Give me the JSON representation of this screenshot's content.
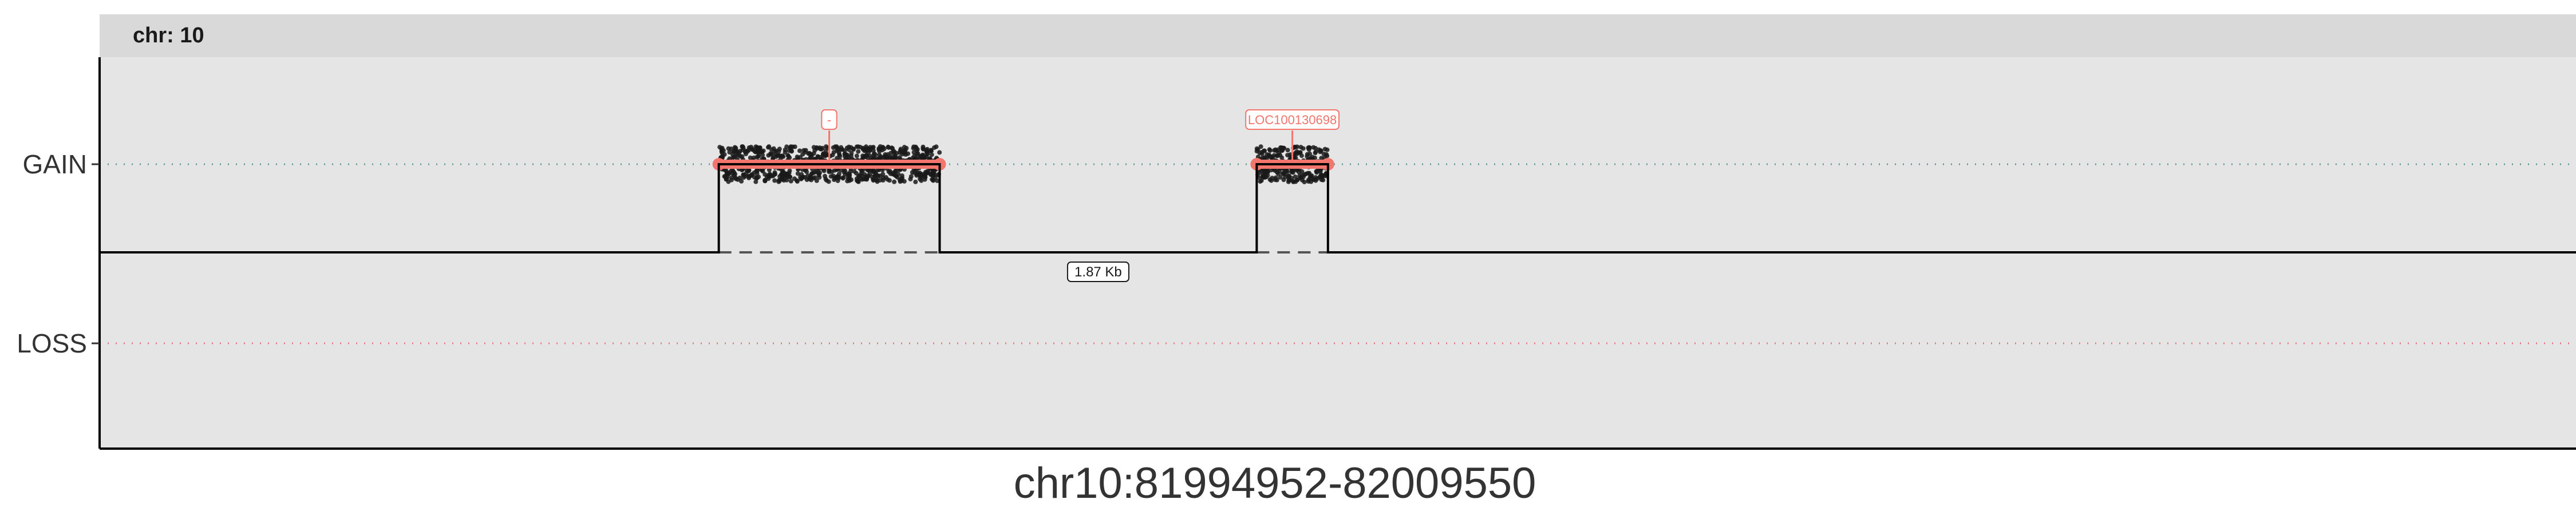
{
  "chart_data": {
    "type": "scatter",
    "facet_label": "chr: 10",
    "xlabel": "chr10:81994952-82009550",
    "y_ticks": [
      "GAIN",
      "LOSS"
    ],
    "xlim": [
      81994952,
      82009550
    ],
    "grid": false,
    "colors": {
      "panel": "#e5e5e5",
      "strip": "#d9d9d9",
      "gain_line": "#5e9a8d",
      "loss_line": "#e8787a",
      "segment": "#f2766d",
      "points": "#1a1a1a",
      "step_line": "#000000"
    },
    "segments": [
      {
        "start": 81998602,
        "end": 81999904,
        "state": "GAIN",
        "gene": "-"
      },
      {
        "start": 82001773,
        "end": 82002193,
        "state": "GAIN",
        "gene": "LOC100130698"
      }
    ],
    "gap_label": "1.87 Kb"
  }
}
